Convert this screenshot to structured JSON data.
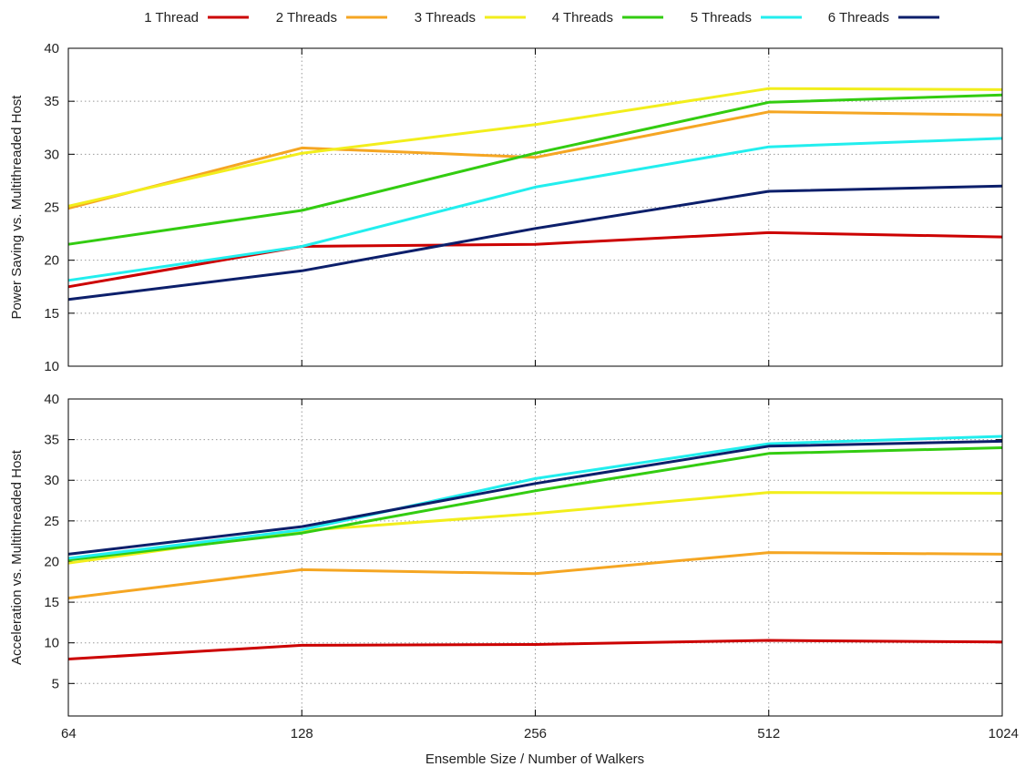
{
  "legend": {
    "position": "top",
    "entries": [
      {
        "label": "1 Thread",
        "color": "#cc0000"
      },
      {
        "label": "2 Threads",
        "color": "#f5a623"
      },
      {
        "label": "3 Threads",
        "color": "#f2ee1c"
      },
      {
        "label": "4 Threads",
        "color": "#33cc11"
      },
      {
        "label": "5 Threads",
        "color": "#22eeee"
      },
      {
        "label": "6 Threads",
        "color": "#0c1f6b"
      }
    ]
  },
  "xlabel": "Ensemble Size / Number of Walkers",
  "chart_data": [
    {
      "type": "line",
      "x": [
        "64",
        "128",
        "256",
        "512",
        "1024"
      ],
      "xscale": "log2",
      "ylabel": "Power Saving vs. Multithreaded Host",
      "ylim": [
        10,
        40
      ],
      "yticks": [
        10,
        15,
        20,
        25,
        30,
        35,
        40
      ],
      "grid": true,
      "series": [
        {
          "name": "1 Thread",
          "color": "#cc0000",
          "values": [
            17.5,
            21.3,
            21.5,
            22.6,
            22.2
          ]
        },
        {
          "name": "2 Threads",
          "color": "#f5a623",
          "values": [
            24.9,
            30.6,
            29.7,
            34.0,
            33.7
          ]
        },
        {
          "name": "3 Threads",
          "color": "#f2ee1c",
          "values": [
            25.1,
            30.1,
            32.8,
            36.2,
            36.1
          ]
        },
        {
          "name": "4 Threads",
          "color": "#33cc11",
          "values": [
            21.5,
            24.7,
            30.1,
            34.9,
            35.6
          ]
        },
        {
          "name": "5 Threads",
          "color": "#22eeee",
          "values": [
            18.1,
            21.3,
            26.9,
            30.7,
            31.5
          ]
        },
        {
          "name": "6 Threads",
          "color": "#0c1f6b",
          "values": [
            16.3,
            19.0,
            23.0,
            26.5,
            27.0
          ]
        }
      ]
    },
    {
      "type": "line",
      "x": [
        "64",
        "128",
        "256",
        "512",
        "1024"
      ],
      "xscale": "log2",
      "ylabel": "Acceleration vs. Multithreaded Host",
      "ylim": [
        1,
        40
      ],
      "yticks": [
        5,
        10,
        15,
        20,
        25,
        30,
        35,
        40
      ],
      "grid": true,
      "series": [
        {
          "name": "1 Thread",
          "color": "#cc0000",
          "values": [
            8.0,
            9.7,
            9.8,
            10.3,
            10.1
          ]
        },
        {
          "name": "2 Threads",
          "color": "#f5a623",
          "values": [
            15.5,
            19.0,
            18.5,
            21.1,
            20.9
          ]
        },
        {
          "name": "3 Threads",
          "color": "#f2ee1c",
          "values": [
            19.8,
            23.8,
            25.9,
            28.5,
            28.4
          ]
        },
        {
          "name": "4 Threads",
          "color": "#33cc11",
          "values": [
            20.2,
            23.5,
            28.7,
            33.3,
            34.0
          ]
        },
        {
          "name": "5 Threads",
          "color": "#22eeee",
          "values": [
            20.4,
            23.9,
            30.2,
            34.5,
            35.4
          ]
        },
        {
          "name": "6 Threads",
          "color": "#0c1f6b",
          "values": [
            20.9,
            24.3,
            29.6,
            34.2,
            34.8
          ]
        }
      ]
    }
  ]
}
